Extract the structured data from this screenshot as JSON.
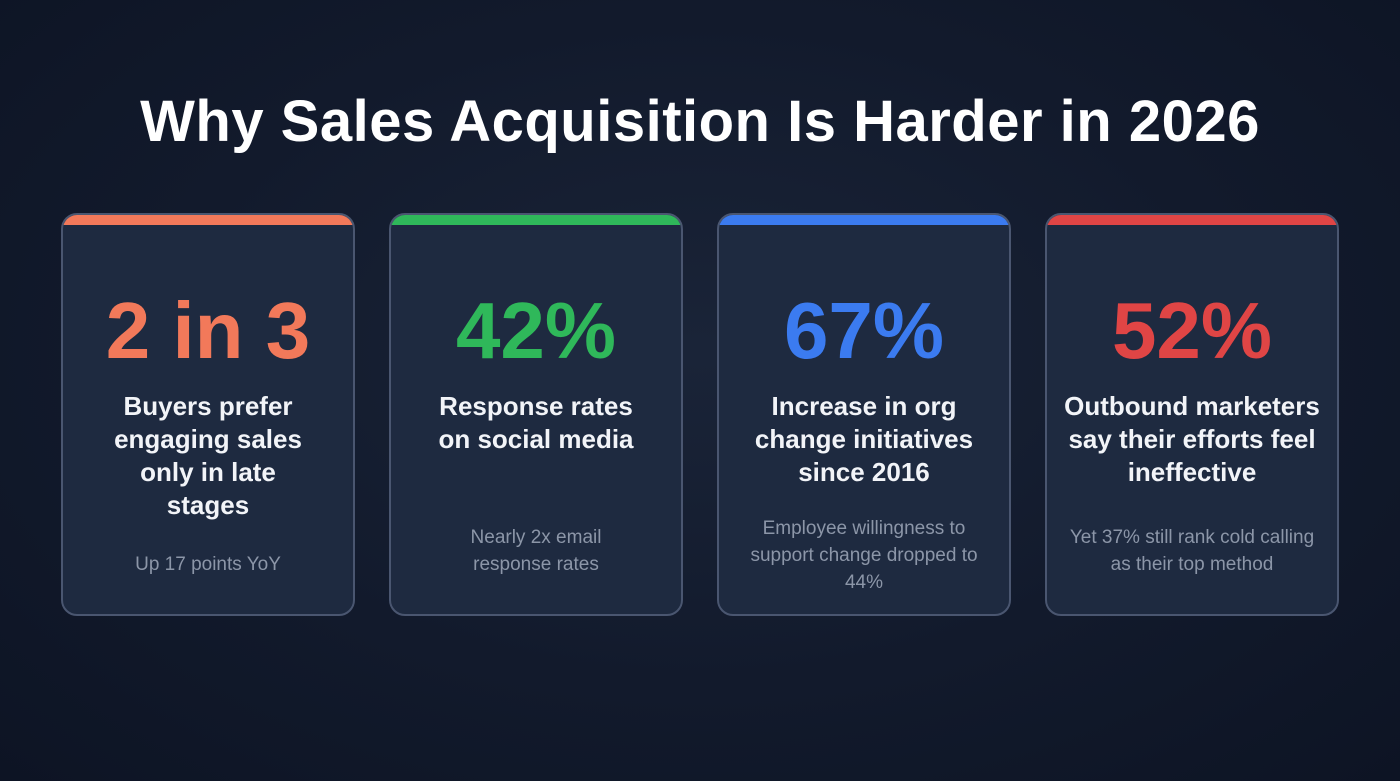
{
  "title": "Why Sales Acquisition Is Harder in 2026",
  "cards": [
    {
      "stat": "2 in 3",
      "description": "Buyers prefer engaging sales only in late stages",
      "subtext": "Up 17 points YoY",
      "color": "#f2795a"
    },
    {
      "stat": "42%",
      "description": "Response rates on social media",
      "subtext": "Nearly 2x email response rates",
      "color": "#2fb85a"
    },
    {
      "stat": "67%",
      "description": "Increase in org change initiatives since 2016",
      "subtext": "Employee willingness to support change dropped to 44%",
      "color": "#3b7bf0"
    },
    {
      "stat": "52%",
      "description": "Outbound marketers say their efforts feel ineffective",
      "subtext": "Yet 37% still rank cold calling as their top method",
      "color": "#e04545"
    }
  ]
}
